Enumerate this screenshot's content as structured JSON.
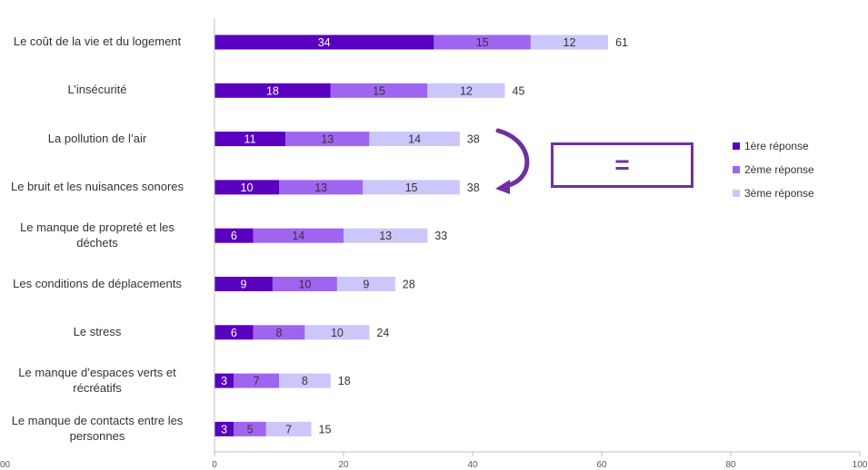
{
  "colors": {
    "s1": "#5a00bf",
    "s2": "#a065f0",
    "s3": "#cbc7fb",
    "accent": "#7030a0",
    "axis": "#bfbfbf",
    "text": "#333333"
  },
  "annotation": {
    "equal_sign": "="
  },
  "chart_data": {
    "type": "bar",
    "orientation": "horizontal",
    "stacked": true,
    "categories": [
      "Le coût de la vie et du logement",
      "L’insécurité",
      "La pollution de l’air",
      "Le bruit et les nuisances sonores",
      "Le manque de propreté et les déchets",
      "Les conditions de déplacements",
      "Le stress",
      "Le manque d’espaces verts et récréatifs",
      "Le manque de contacts entre les personnes"
    ],
    "category_lines": [
      [
        "Le coût de la vie et du logement"
      ],
      [
        "L’insécurité"
      ],
      [
        "La pollution de l’air"
      ],
      [
        "Le bruit et les nuisances sonores"
      ],
      [
        "Le manque de propreté et les",
        "déchets"
      ],
      [
        "Les conditions de déplacements"
      ],
      [
        "Le stress"
      ],
      [
        "Le manque d’espaces verts et",
        "récréatifs"
      ],
      [
        "Le manque de contacts entre les",
        "personnes"
      ]
    ],
    "series": [
      {
        "name": "1ère réponse",
        "values": [
          34,
          18,
          11,
          10,
          6,
          9,
          6,
          3,
          3
        ]
      },
      {
        "name": "2ème réponse",
        "values": [
          15,
          15,
          13,
          13,
          14,
          10,
          8,
          7,
          5
        ]
      },
      {
        "name": "3ème réponse",
        "values": [
          12,
          12,
          14,
          15,
          13,
          9,
          10,
          8,
          7
        ]
      }
    ],
    "totals": [
      61,
      45,
      38,
      38,
      33,
      28,
      24,
      18,
      15
    ],
    "xlim": [
      0,
      100
    ],
    "xticks": [
      "0",
      "20",
      "40",
      "60",
      "80",
      "100"
    ],
    "left_clipped_tick": "00",
    "grid": false,
    "legend_position": "right"
  }
}
